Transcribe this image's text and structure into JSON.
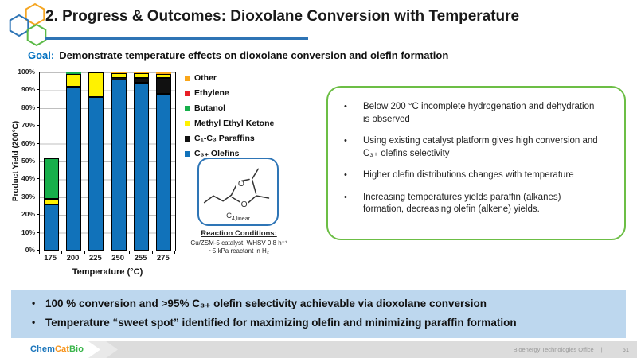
{
  "header": {
    "title": "2. Progress & Outcomes: Dioxolane Conversion with Temperature",
    "underline_color": "#2E74B5",
    "hex_colors": {
      "blue": "#2E75B6",
      "orange": "#F5A623",
      "green": "#5BBA47"
    }
  },
  "goal": {
    "label": "Goal:",
    "label_color": "#0070C0",
    "text": "Demonstrate temperature effects on dioxolane conversion and olefin formation"
  },
  "chart_data": {
    "type": "bar",
    "stacked": true,
    "title": "",
    "xlabel": "Temperature (°C)",
    "ylabel": "Product Yield (200°C)",
    "ylim": [
      0,
      100
    ],
    "ytick_step": 10,
    "ytick_suffix": "%",
    "grid": true,
    "legend_position": "right",
    "categories": [
      "175",
      "200",
      "225",
      "250",
      "255",
      "275"
    ],
    "series": [
      {
        "name": "C₃₊ Olefins",
        "color": "#1172BA",
        "values": [
          26,
          92,
          86,
          96,
          94,
          88
        ]
      },
      {
        "name": "C₁-C₃ Paraffins",
        "color": "#111111",
        "values": [
          0,
          0,
          0,
          1,
          3,
          9
        ]
      },
      {
        "name": "Methyl Ethyl Ketone",
        "color": "#FFF200",
        "values": [
          3,
          7,
          14,
          2.5,
          2.5,
          2
        ]
      },
      {
        "name": "Butanol",
        "color": "#17AF4B",
        "values": [
          23,
          1,
          0,
          0,
          0,
          0
        ]
      },
      {
        "name": "Ethylene",
        "color": "#E81E25",
        "values": [
          0,
          0,
          0,
          0,
          0,
          0
        ]
      },
      {
        "name": "Other",
        "color": "#FAA61A",
        "values": [
          0,
          0,
          0,
          0.5,
          0.5,
          1
        ]
      }
    ]
  },
  "structure": {
    "label_base": "C",
    "label_sub": "4,linear",
    "border_color": "#2E75B6",
    "conditions_title": "Reaction Conditions:",
    "conditions_line1": "Cu/ZSM-5 catalyst, WHSV 0.8 h⁻¹",
    "conditions_line2": "~5 kPa reactant in H₂"
  },
  "insights": {
    "border_color": "#6CBE45",
    "bullets": [
      "Below 200 °C incomplete hydrogenation and dehydration is observed",
      "Using existing catalyst platform gives high conversion and C₃₊ olefins selectivity",
      "Higher olefin distributions changes with temperature",
      "Increasing temperatures yields paraffin (alkanes) formation, decreasing olefin (alkene) yields."
    ]
  },
  "takeaways": {
    "bg_color": "#BDD7EE",
    "bullets": [
      "100 % conversion and >95% C₃₊ olefin selectivity achievable via dioxolane conversion",
      "Temperature “sweet spot” identified for maximizing olefin and minimizing paraffin formation"
    ]
  },
  "footer": {
    "logo": [
      {
        "text": "Chem",
        "color": "#1B75BB"
      },
      {
        "text": "Cat",
        "color": "#F7941D"
      },
      {
        "text": "Bio",
        "color": "#39B54A"
      }
    ],
    "right_text": "Bioenergy Technologies Office",
    "divider": "|",
    "page": "61"
  }
}
